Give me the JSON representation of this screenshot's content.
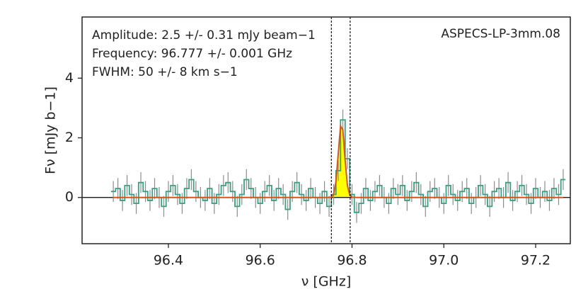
{
  "chart_data": {
    "type": "step",
    "title": "ASPECS-LP-3mm.08",
    "xlabel": "ν [GHz]",
    "ylabel": "Fν [mJy b−1]",
    "annotations": [
      "Amplitude: 2.5 +/- 0.31 mJy beam−1",
      "Frequency: 96.777 +/- 0.001 GHz",
      "FWHM: 50 +/- 8 km s−1"
    ],
    "x": [
      96.28,
      96.29,
      96.3,
      96.31,
      96.32,
      96.33,
      96.34,
      96.35,
      96.36,
      96.37,
      96.38,
      96.39,
      96.4,
      96.41,
      96.42,
      96.43,
      96.44,
      96.45,
      96.46,
      96.47,
      96.48,
      96.49,
      96.5,
      96.51,
      96.52,
      96.53,
      96.54,
      96.55,
      96.56,
      96.57,
      96.58,
      96.59,
      96.6,
      96.61,
      96.62,
      96.63,
      96.64,
      96.65,
      96.66,
      96.67,
      96.68,
      96.69,
      96.7,
      96.71,
      96.72,
      96.73,
      96.74,
      96.75,
      96.76,
      96.77,
      96.78,
      96.79,
      96.8,
      96.81,
      96.82,
      96.83,
      96.84,
      96.85,
      96.86,
      96.87,
      96.88,
      96.89,
      96.9,
      96.91,
      96.92,
      96.93,
      96.94,
      96.95,
      96.96,
      96.97,
      96.98,
      96.99,
      97.0,
      97.01,
      97.02,
      97.03,
      97.04,
      97.05,
      97.06,
      97.07,
      97.08,
      97.09,
      97.1,
      97.11,
      97.12,
      97.13,
      97.14,
      97.15,
      97.16,
      97.17,
      97.18,
      97.19,
      97.2,
      97.21,
      97.22,
      97.23,
      97.24,
      97.25,
      97.26
    ],
    "series": [
      {
        "color": "#3a9e80",
        "error_color": "#8c8c8c",
        "error": 0.35,
        "values": [
          0.2,
          0.3,
          -0.1,
          0.4,
          0.1,
          -0.2,
          0.5,
          0.2,
          -0.1,
          0.3,
          0.0,
          -0.3,
          0.2,
          0.4,
          0.1,
          -0.2,
          0.3,
          0.6,
          0.2,
          0.0,
          -0.1,
          0.3,
          -0.2,
          0.1,
          0.4,
          0.5,
          0.2,
          -0.3,
          0.1,
          0.6,
          0.3,
          0.0,
          -0.2,
          0.2,
          0.4,
          -0.1,
          0.3,
          0.1,
          -0.4,
          0.2,
          0.5,
          0.1,
          -0.1,
          0.3,
          0.0,
          -0.2,
          0.2,
          -0.3,
          0.1,
          0.9,
          2.6,
          1.3,
          0.1,
          -0.5,
          -0.2,
          0.3,
          -0.1,
          0.2,
          0.4,
          0.0,
          -0.2,
          0.3,
          0.1,
          0.4,
          -0.1,
          0.2,
          0.5,
          0.1,
          -0.3,
          0.2,
          0.3,
          0.0,
          -0.2,
          0.4,
          0.1,
          -0.1,
          0.2,
          0.3,
          -0.2,
          0.0,
          0.4,
          0.1,
          -0.3,
          0.2,
          0.3,
          0.0,
          0.5,
          -0.1,
          0.2,
          0.4,
          0.1,
          -0.2,
          0.3,
          0.0,
          0.2,
          -0.1,
          0.3,
          0.1,
          0.6
        ]
      }
    ],
    "fit": {
      "color": "#d2561e",
      "fill_color": "#ffff00",
      "x": [
        96.28,
        96.74,
        96.75,
        96.755,
        96.76,
        96.765,
        96.77,
        96.775,
        96.78,
        96.785,
        96.79,
        96.795,
        96.8,
        96.81,
        97.26
      ],
      "values": [
        0,
        0,
        0,
        0.013,
        0.11,
        0.53,
        1.47,
        2.39,
        2.27,
        1.25,
        0.4,
        0.08,
        0.01,
        0,
        0
      ]
    },
    "vlines": [
      96.755,
      96.796
    ],
    "hline": 0,
    "xlim": [
      96.212,
      97.2755
    ],
    "ylim": [
      -1.55,
      6.05
    ],
    "xticks": [
      96.4,
      96.6,
      96.8,
      {
        "value": 97,
        "label": "97.0"
      },
      97.2
    ],
    "yticks": [
      0,
      2,
      4
    ]
  }
}
